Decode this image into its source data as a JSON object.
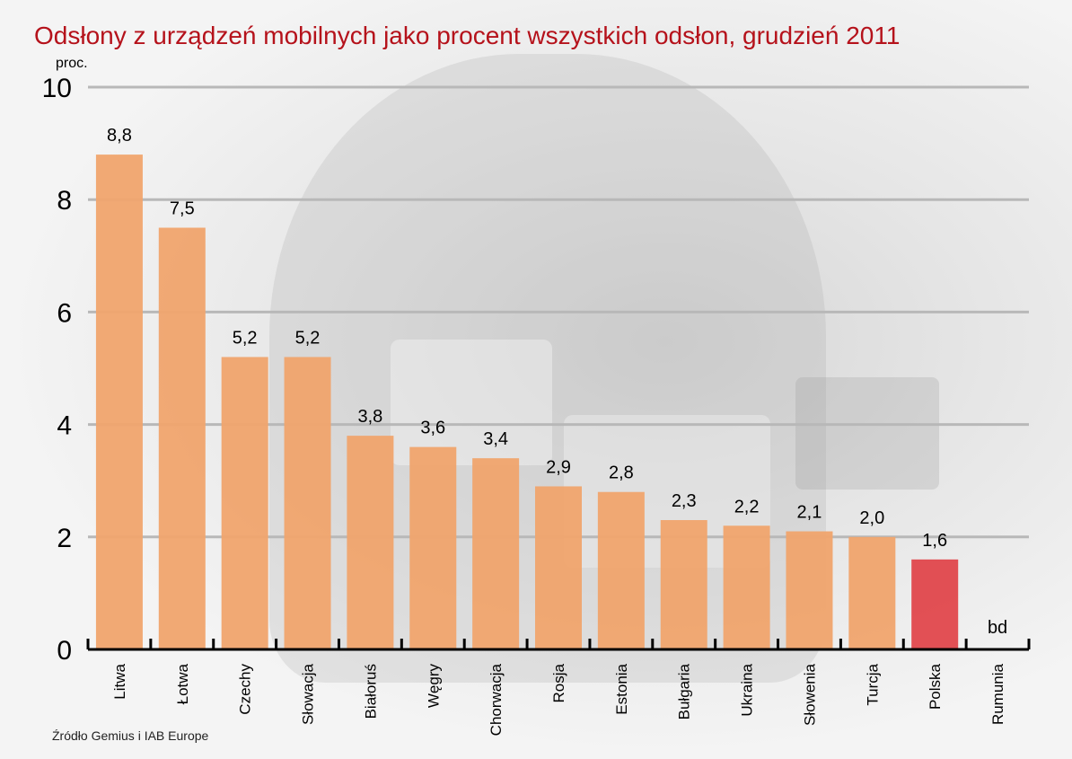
{
  "title": "Odsłony z urządzeń mobilnych jako procent wszystkich odsłon, grudzień 2011",
  "unit": "proc.",
  "source": "Źródło Gemius i IAB Europe",
  "colors": {
    "title": "#b5121b",
    "bar": "#f0a46d",
    "highlight_bar": "#e0474c",
    "grid": "#b8b8b8",
    "axis": "#000000"
  },
  "chart_data": {
    "type": "bar",
    "title": "Odsłony z urządzeń mobilnych jako procent wszystkich odsłon, grudzień 2011",
    "ylabel": "proc.",
    "xlabel": "",
    "ylim": [
      0,
      10
    ],
    "yticks": [
      0,
      2,
      4,
      6,
      8,
      10
    ],
    "grid": true,
    "categories": [
      "Litwa",
      "Łotwa",
      "Czechy",
      "Słowacja",
      "Białoruś",
      "Węgry",
      "Chorwacja",
      "Rosja",
      "Estonia",
      "Bułgaria",
      "Ukraina",
      "Słowenia",
      "Turcja",
      "Polska",
      "Rumunia"
    ],
    "values": [
      8.8,
      7.5,
      5.2,
      5.2,
      3.8,
      3.6,
      3.4,
      2.9,
      2.8,
      2.3,
      2.2,
      2.1,
      2.0,
      1.6,
      null
    ],
    "value_labels": [
      "8,8",
      "7,5",
      "5,2",
      "5,2",
      "3,8",
      "3,6",
      "3,4",
      "2,9",
      "2,8",
      "2,3",
      "2,2",
      "2,1",
      "2,0",
      "1,6",
      "bd"
    ],
    "highlight": "Polska"
  }
}
